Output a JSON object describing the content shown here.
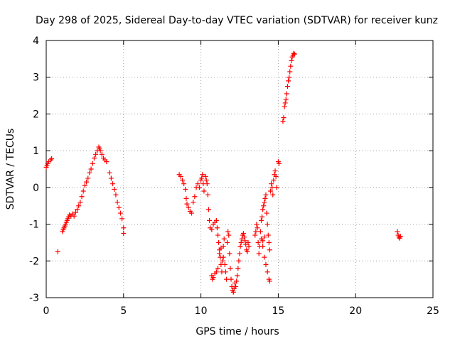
{
  "chart_data": {
    "type": "scatter",
    "title": "Day 298 of 2025, Sidereal Day-to-day VTEC variation (SDTVAR) for receiver kunz",
    "xlabel": "GPS time / hours",
    "ylabel": "SDTVAR / TECUs",
    "xlim": [
      0,
      25
    ],
    "ylim": [
      -3,
      4
    ],
    "xticks": [
      "0",
      "5",
      "10",
      "15",
      "20",
      "25"
    ],
    "yticks": [
      "-3",
      "-2",
      "-1",
      "0",
      "1",
      "2",
      "3",
      "4"
    ],
    "grid": true,
    "marker": "plus",
    "color": "#ff0000",
    "series": [
      {
        "points": [
          [
            0.0,
            0.55
          ],
          [
            0.05,
            0.6
          ],
          [
            0.1,
            0.65
          ],
          [
            0.15,
            0.7
          ],
          [
            0.3,
            0.75
          ],
          [
            0.35,
            0.78
          ],
          [
            0.75,
            -1.75
          ],
          [
            1.05,
            -1.2
          ],
          [
            1.1,
            -1.15
          ],
          [
            1.15,
            -1.1
          ],
          [
            1.2,
            -1.05
          ],
          [
            1.25,
            -1.0
          ],
          [
            1.3,
            -0.95
          ],
          [
            1.35,
            -0.9
          ],
          [
            1.4,
            -0.85
          ],
          [
            1.45,
            -0.8
          ],
          [
            1.5,
            -0.75
          ],
          [
            1.6,
            -0.78
          ],
          [
            1.7,
            -0.72
          ],
          [
            1.8,
            -0.78
          ],
          [
            1.9,
            -0.68
          ],
          [
            2.0,
            -0.6
          ],
          [
            2.1,
            -0.5
          ],
          [
            2.2,
            -0.4
          ],
          [
            2.3,
            -0.25
          ],
          [
            2.4,
            -0.1
          ],
          [
            2.5,
            0.05
          ],
          [
            2.6,
            0.15
          ],
          [
            2.7,
            0.25
          ],
          [
            2.8,
            0.4
          ],
          [
            2.9,
            0.5
          ],
          [
            3.0,
            0.65
          ],
          [
            3.1,
            0.8
          ],
          [
            3.2,
            0.9
          ],
          [
            3.3,
            1.0
          ],
          [
            3.4,
            1.1
          ],
          [
            3.45,
            1.05
          ],
          [
            3.5,
            1.0
          ],
          [
            3.6,
            0.9
          ],
          [
            3.7,
            0.8
          ],
          [
            3.8,
            0.75
          ],
          [
            3.9,
            0.7
          ],
          [
            4.1,
            0.4
          ],
          [
            4.2,
            0.25
          ],
          [
            4.3,
            0.1
          ],
          [
            4.4,
            -0.05
          ],
          [
            4.5,
            -0.2
          ],
          [
            4.6,
            -0.4
          ],
          [
            4.7,
            -0.55
          ],
          [
            4.8,
            -0.7
          ],
          [
            4.9,
            -0.85
          ],
          [
            5.0,
            -1.1
          ],
          [
            5.0,
            -1.25
          ],
          [
            8.6,
            0.35
          ],
          [
            8.7,
            0.3
          ],
          [
            8.8,
            0.2
          ],
          [
            8.9,
            0.1
          ],
          [
            9.0,
            -0.05
          ],
          [
            9.05,
            -0.3
          ],
          [
            9.1,
            -0.45
          ],
          [
            9.2,
            -0.55
          ],
          [
            9.3,
            -0.65
          ],
          [
            9.4,
            -0.7
          ],
          [
            9.5,
            -0.4
          ],
          [
            9.6,
            -0.25
          ],
          [
            9.7,
            0.0
          ],
          [
            9.8,
            0.1
          ],
          [
            9.9,
            0.0
          ],
          [
            10.0,
            0.2
          ],
          [
            10.05,
            0.25
          ],
          [
            10.1,
            0.35
          ],
          [
            10.15,
            0.1
          ],
          [
            10.2,
            -0.1
          ],
          [
            10.3,
            0.3
          ],
          [
            10.35,
            0.2
          ],
          [
            10.4,
            0.1
          ],
          [
            10.45,
            -0.2
          ],
          [
            10.5,
            -0.6
          ],
          [
            10.55,
            -0.9
          ],
          [
            10.6,
            -1.1
          ],
          [
            10.7,
            -1.15
          ],
          [
            10.8,
            -1.0
          ],
          [
            10.9,
            -0.95
          ],
          [
            11.0,
            -0.9
          ],
          [
            11.05,
            -1.1
          ],
          [
            11.1,
            -1.3
          ],
          [
            11.15,
            -1.5
          ],
          [
            11.2,
            -1.7
          ],
          [
            11.25,
            -1.9
          ],
          [
            11.3,
            -2.1
          ],
          [
            11.35,
            -2.3
          ],
          [
            11.4,
            -2.0
          ],
          [
            11.45,
            -1.6
          ],
          [
            11.5,
            -1.4
          ],
          [
            10.7,
            -2.4
          ],
          [
            10.75,
            -2.5
          ],
          [
            10.8,
            -2.45
          ],
          [
            10.9,
            -2.35
          ],
          [
            11.0,
            -2.3
          ],
          [
            11.1,
            -2.2
          ],
          [
            11.2,
            -1.8
          ],
          [
            11.3,
            -1.65
          ],
          [
            11.45,
            -1.9
          ],
          [
            11.55,
            -2.1
          ],
          [
            11.6,
            -2.3
          ],
          [
            11.65,
            -2.5
          ],
          [
            11.7,
            -1.5
          ],
          [
            11.75,
            -1.2
          ],
          [
            11.8,
            -1.3
          ],
          [
            11.85,
            -1.8
          ],
          [
            11.9,
            -2.2
          ],
          [
            11.95,
            -2.5
          ],
          [
            12.0,
            -2.7
          ],
          [
            12.05,
            -2.8
          ],
          [
            12.1,
            -2.85
          ],
          [
            12.15,
            -2.75
          ],
          [
            12.2,
            -2.6
          ],
          [
            12.25,
            -2.7
          ],
          [
            12.3,
            -2.55
          ],
          [
            12.35,
            -2.4
          ],
          [
            12.4,
            -2.2
          ],
          [
            12.45,
            -2.0
          ],
          [
            12.5,
            -1.8
          ],
          [
            12.55,
            -1.6
          ],
          [
            12.6,
            -1.5
          ],
          [
            12.65,
            -1.4
          ],
          [
            12.7,
            -1.3
          ],
          [
            12.75,
            -1.25
          ],
          [
            12.8,
            -1.35
          ],
          [
            12.85,
            -1.45
          ],
          [
            12.9,
            -1.55
          ],
          [
            12.95,
            -1.7
          ],
          [
            13.0,
            -1.75
          ],
          [
            13.05,
            -1.5
          ],
          [
            13.1,
            -1.6
          ],
          [
            13.5,
            -1.3
          ],
          [
            13.55,
            -1.2
          ],
          [
            13.6,
            -1.0
          ],
          [
            13.65,
            -1.1
          ],
          [
            13.7,
            -1.5
          ],
          [
            13.75,
            -1.8
          ],
          [
            13.8,
            -1.6
          ],
          [
            13.85,
            -1.2
          ],
          [
            13.9,
            -0.9
          ],
          [
            13.95,
            -0.8
          ],
          [
            14.0,
            -0.6
          ],
          [
            14.05,
            -0.5
          ],
          [
            14.1,
            -0.4
          ],
          [
            14.15,
            -0.3
          ],
          [
            14.2,
            -0.2
          ],
          [
            14.25,
            -0.7
          ],
          [
            14.3,
            -1.0
          ],
          [
            14.35,
            -1.3
          ],
          [
            14.4,
            -1.5
          ],
          [
            14.45,
            -1.7
          ],
          [
            14.5,
            -0.1
          ],
          [
            14.55,
            0.1
          ],
          [
            14.6,
            0.0
          ],
          [
            14.65,
            -0.2
          ],
          [
            14.7,
            0.2
          ],
          [
            14.75,
            0.35
          ],
          [
            14.8,
            0.45
          ],
          [
            14.85,
            0.3
          ],
          [
            14.9,
            0.0
          ],
          [
            14.0,
            -1.6
          ],
          [
            14.1,
            -1.9
          ],
          [
            14.2,
            -2.1
          ],
          [
            14.3,
            -2.3
          ],
          [
            14.4,
            -2.5
          ],
          [
            14.45,
            -2.55
          ],
          [
            13.9,
            -1.4
          ],
          [
            14.0,
            -1.45
          ],
          [
            14.1,
            -1.35
          ],
          [
            15.0,
            0.7
          ],
          [
            15.05,
            0.65
          ],
          [
            15.3,
            1.8
          ],
          [
            15.35,
            1.9
          ],
          [
            15.4,
            2.2
          ],
          [
            15.45,
            2.3
          ],
          [
            15.5,
            2.4
          ],
          [
            15.55,
            2.55
          ],
          [
            15.6,
            2.75
          ],
          [
            15.65,
            2.9
          ],
          [
            15.7,
            3.0
          ],
          [
            15.75,
            3.15
          ],
          [
            15.8,
            3.3
          ],
          [
            15.85,
            3.45
          ],
          [
            15.9,
            3.55
          ],
          [
            15.95,
            3.6
          ],
          [
            16.0,
            3.65
          ],
          [
            16.05,
            3.63
          ],
          [
            22.7,
            -1.2
          ],
          [
            22.75,
            -1.3
          ],
          [
            22.8,
            -1.35
          ],
          [
            22.85,
            -1.38
          ],
          [
            22.9,
            -1.33
          ]
        ]
      }
    ]
  }
}
